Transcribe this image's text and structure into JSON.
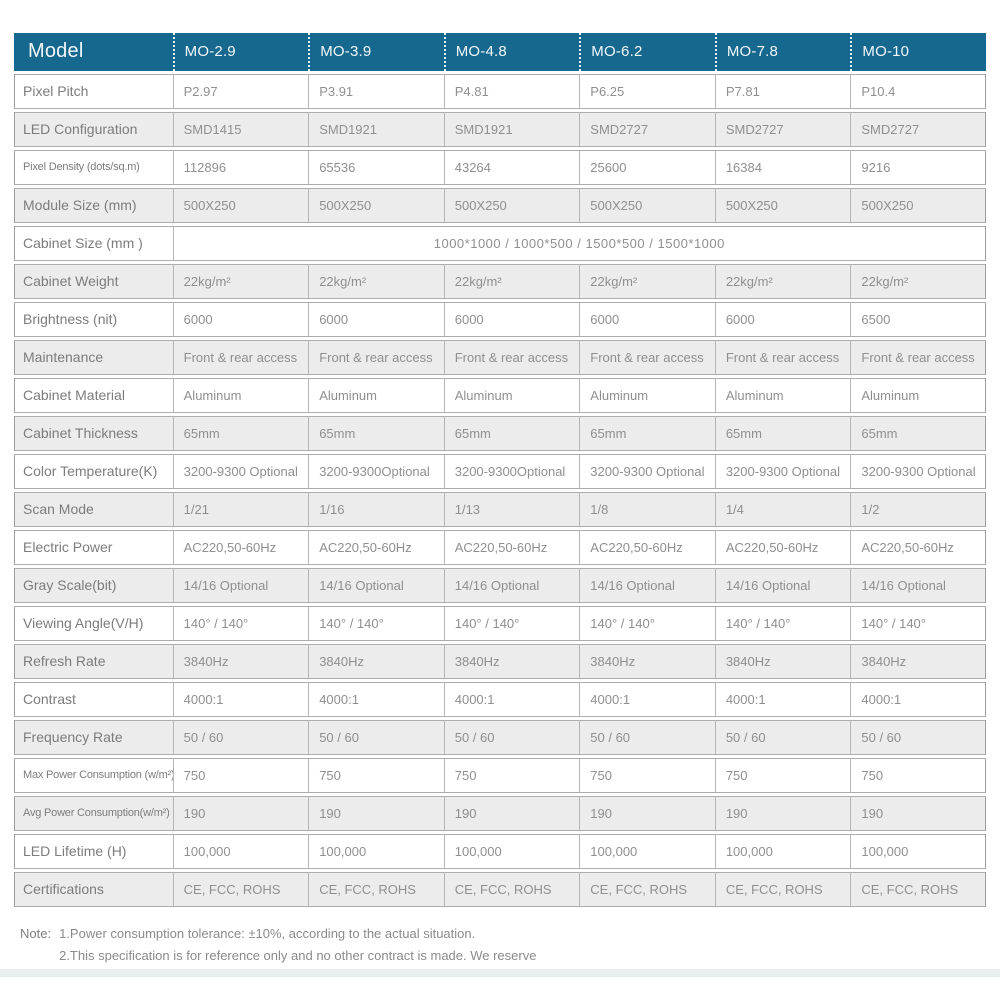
{
  "table": {
    "header": {
      "model_label": "Model",
      "columns": [
        "MO-2.9",
        "MO-3.9",
        "MO-4.8",
        "MO-6.2",
        "MO-7.8",
        "MO-10"
      ]
    },
    "rows": [
      {
        "label": "Pixel Pitch",
        "values": [
          "P2.97",
          "P3.91",
          "P4.81",
          "P6.25",
          "P7.81",
          "P10.4"
        ]
      },
      {
        "label": "LED Configuration",
        "values": [
          "SMD1415",
          "SMD1921",
          "SMD1921",
          "SMD2727",
          "SMD2727",
          "SMD2727"
        ]
      },
      {
        "label": "Pixel Density (dots/sq.m)",
        "values": [
          "112896",
          "65536",
          "43264",
          "25600",
          "16384",
          "9216"
        ]
      },
      {
        "label": "Module Size (mm)",
        "values": [
          "500X250",
          "500X250",
          "500X250",
          "500X250",
          "500X250",
          "500X250"
        ]
      },
      {
        "label": "Cabinet Size (mm )",
        "span_value": "1000*1000 / 1000*500 / 1500*500 / 1500*1000"
      },
      {
        "label": "Cabinet Weight",
        "values": [
          "22kg/m²",
          "22kg/m²",
          "22kg/m²",
          "22kg/m²",
          "22kg/m²",
          "22kg/m²"
        ]
      },
      {
        "label": "Brightness (nit)",
        "values": [
          "6000",
          "6000",
          "6000",
          "6000",
          "6000",
          "6500"
        ]
      },
      {
        "label": "Maintenance",
        "values": [
          "Front & rear access",
          "Front & rear access",
          "Front & rear access",
          "Front & rear access",
          "Front & rear access",
          "Front & rear access"
        ]
      },
      {
        "label": "Cabinet Material",
        "values": [
          "Aluminum",
          "Aluminum",
          "Aluminum",
          "Aluminum",
          "Aluminum",
          "Aluminum"
        ]
      },
      {
        "label": "Cabinet Thickness",
        "values": [
          "65mm",
          "65mm",
          "65mm",
          "65mm",
          "65mm",
          "65mm"
        ]
      },
      {
        "label": "Color Temperature(K)",
        "values": [
          "3200-9300 Optional",
          "3200-9300Optional",
          "3200-9300Optional",
          "3200-9300 Optional",
          "3200-9300 Optional",
          "3200-9300 Optional"
        ]
      },
      {
        "label": "Scan Mode",
        "values": [
          "1/21",
          "1/16",
          "1/13",
          "1/8",
          "1/4",
          "1/2"
        ]
      },
      {
        "label": "Electric Power",
        "values": [
          "AC220,50-60Hz",
          "AC220,50-60Hz",
          "AC220,50-60Hz",
          "AC220,50-60Hz",
          "AC220,50-60Hz",
          "AC220,50-60Hz"
        ]
      },
      {
        "label": "Gray Scale(bit)",
        "values": [
          "14/16 Optional",
          "14/16 Optional",
          "14/16 Optional",
          "14/16 Optional",
          "14/16 Optional",
          "14/16 Optional"
        ]
      },
      {
        "label": "Viewing Angle(V/H)",
        "values": [
          "140° / 140°",
          "140° / 140°",
          "140° / 140°",
          "140° / 140°",
          "140° / 140°",
          "140° / 140°"
        ]
      },
      {
        "label": "Refresh Rate",
        "values": [
          "3840Hz",
          "3840Hz",
          "3840Hz",
          "3840Hz",
          "3840Hz",
          "3840Hz"
        ]
      },
      {
        "label": "Contrast",
        "values": [
          "4000:1",
          "4000:1",
          "4000:1",
          "4000:1",
          "4000:1",
          "4000:1"
        ]
      },
      {
        "label": "Frequency Rate",
        "values": [
          "50 / 60",
          "50 / 60",
          "50 / 60",
          "50 / 60",
          "50 / 60",
          "50 / 60"
        ]
      },
      {
        "label": "Max Power Consumption (w/m²)",
        "values": [
          "750",
          "750",
          "750",
          "750",
          "750",
          "750"
        ]
      },
      {
        "label": "Avg Power Consumption(w/m²)",
        "values": [
          "190",
          "190",
          "190",
          "190",
          "190",
          "190"
        ]
      },
      {
        "label": "LED Lifetime (H)",
        "values": [
          "100,000",
          "100,000",
          "100,000",
          "100,000",
          "100,000",
          "100,000"
        ]
      },
      {
        "label": "Certifications",
        "values": [
          "CE, FCC, ROHS",
          "CE, FCC, ROHS",
          "CE, FCC, ROHS",
          "CE, FCC, ROHS",
          "CE, FCC, ROHS",
          "CE, FCC, ROHS"
        ]
      }
    ]
  },
  "note": {
    "prefix": "Note:",
    "line1": "1.Power consumption tolerance: ±10%, according to the actual situation.",
    "line2": "2.This specification is for reference only and no other contract is made. We reserve"
  },
  "colors": {
    "header_bg": "#16688e",
    "header_text": "#f2f7fa",
    "row_alt_bg": "#ececec",
    "border": "#adadad",
    "value_text": "#8f8f8f",
    "label_text": "#7c7c7c"
  }
}
